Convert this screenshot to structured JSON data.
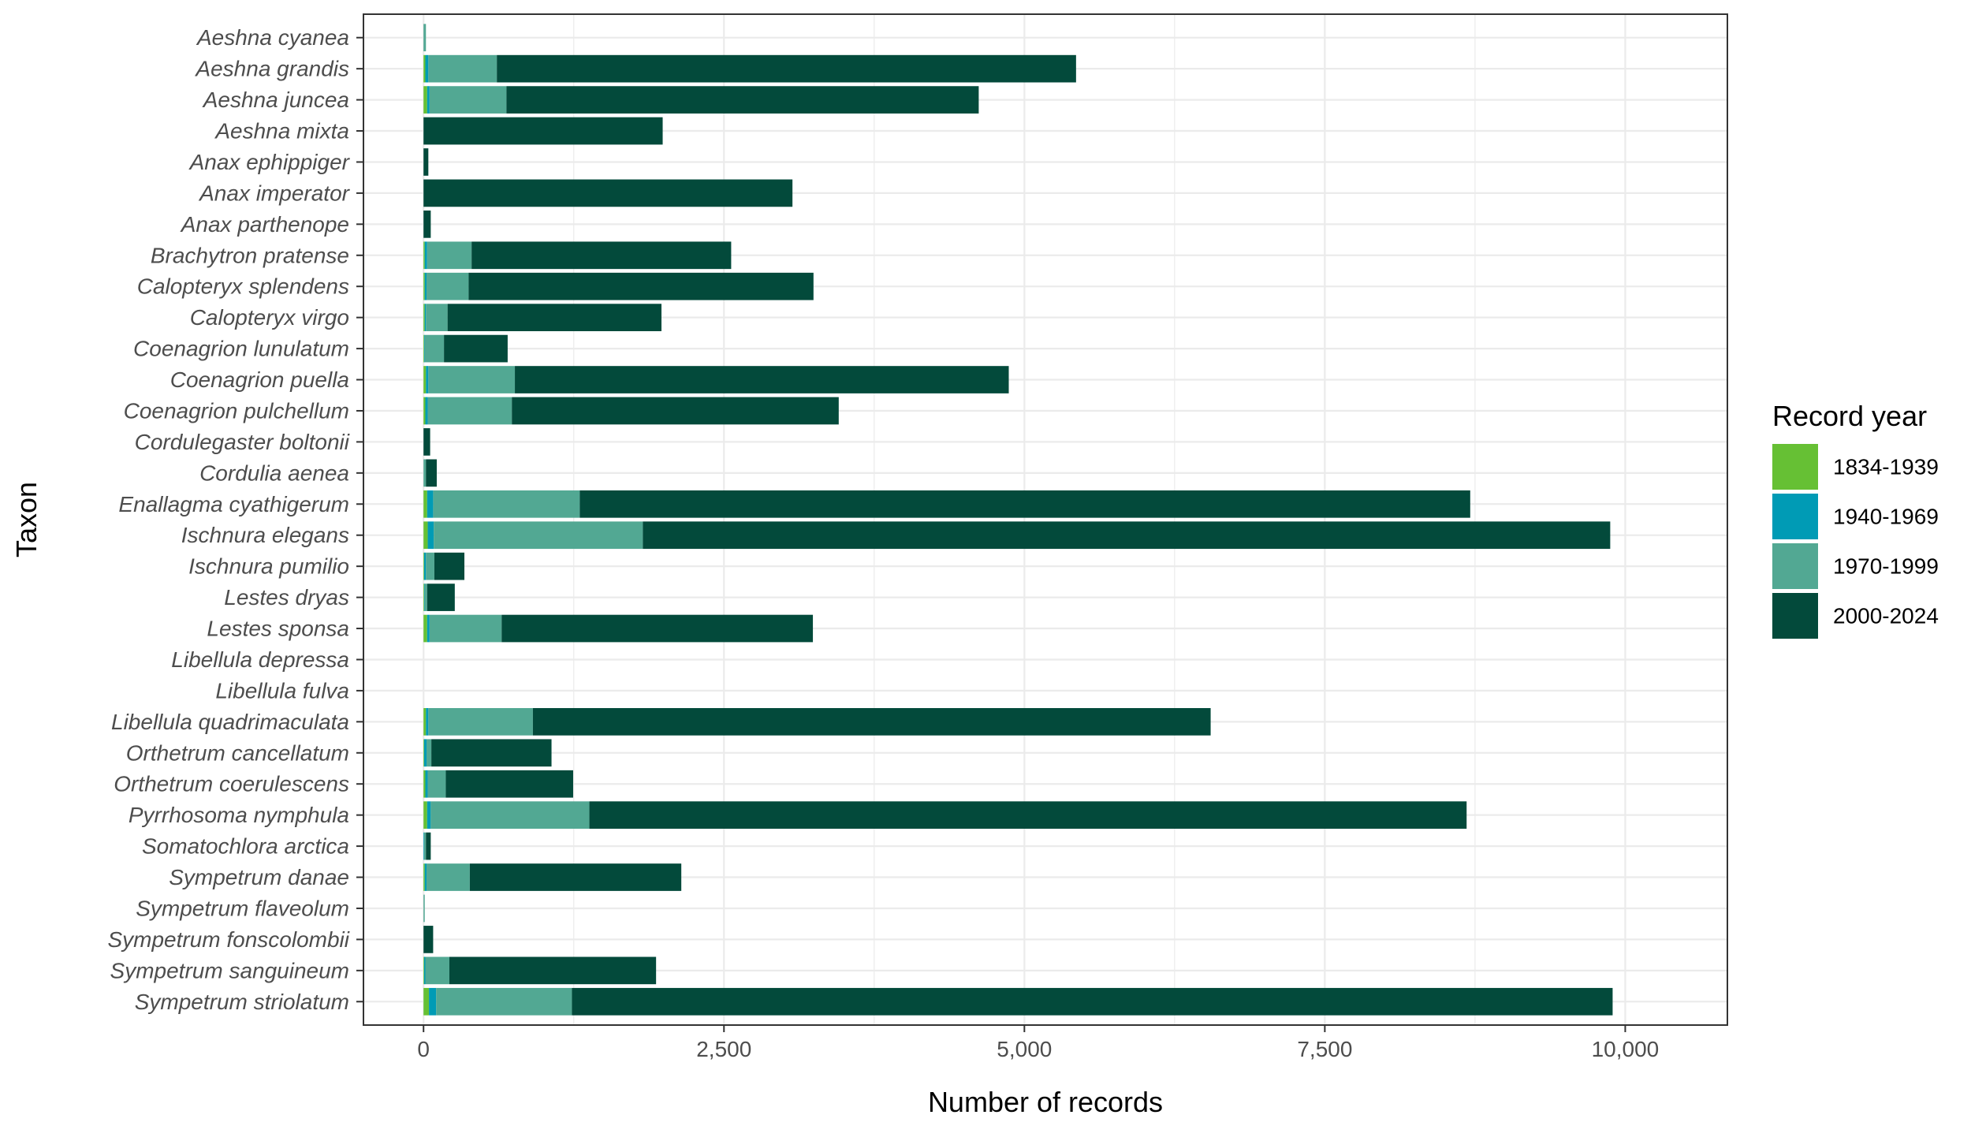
{
  "chart_data": {
    "type": "bar",
    "orientation": "horizontal",
    "stacked": true,
    "xlabel": "Number of records",
    "ylabel": "Taxon",
    "xlim": [
      -500,
      10850
    ],
    "xticks": [
      0,
      2500,
      5000,
      7500,
      10000
    ],
    "xtick_labels": [
      "0",
      "2,500",
      "5,000",
      "7,500",
      "10,000"
    ],
    "grid": true,
    "legend": {
      "title": "Record year",
      "position": "right"
    },
    "categories": [
      "Aeshna cyanea",
      "Aeshna grandis",
      "Aeshna juncea",
      "Aeshna mixta",
      "Anax ephippiger",
      "Anax imperator",
      "Anax parthenope",
      "Brachytron pratense",
      "Calopteryx splendens",
      "Calopteryx virgo",
      "Coenagrion lunulatum",
      "Coenagrion puella",
      "Coenagrion pulchellum",
      "Cordulegaster boltonii",
      "Cordulia aenea",
      "Enallagma cyathigerum",
      "Ischnura elegans",
      "Ischnura pumilio",
      "Lestes dryas",
      "Lestes sponsa",
      "Libellula depressa",
      "Libellula fulva",
      "Libellula quadrimaculata",
      "Orthetrum cancellatum",
      "Orthetrum coerulescens",
      "Pyrrhosoma nymphula",
      "Somatochlora arctica",
      "Sympetrum danae",
      "Sympetrum flaveolum",
      "Sympetrum fonscolombii",
      "Sympetrum sanguineum",
      "Sympetrum striolatum"
    ],
    "series": [
      {
        "name": "1834-1939",
        "color": "#66c034",
        "values": [
          0,
          15,
          30,
          0,
          0,
          0,
          0,
          10,
          10,
          10,
          5,
          20,
          15,
          0,
          0,
          30,
          35,
          5,
          5,
          30,
          0,
          0,
          20,
          5,
          15,
          30,
          0,
          10,
          0,
          0,
          5,
          45
        ]
      },
      {
        "name": "1940-1969",
        "color": "#009bb5",
        "values": [
          0,
          25,
          20,
          0,
          0,
          0,
          0,
          20,
          15,
          10,
          5,
          20,
          20,
          0,
          0,
          50,
          50,
          15,
          5,
          20,
          0,
          0,
          20,
          20,
          20,
          30,
          5,
          15,
          0,
          0,
          10,
          60
        ]
      },
      {
        "name": "1970-1999",
        "color": "#52a893",
        "values": [
          20,
          570,
          640,
          0,
          0,
          0,
          0,
          370,
          350,
          180,
          160,
          720,
          700,
          0,
          20,
          1220,
          1740,
          70,
          20,
          600,
          0,
          0,
          870,
          40,
          150,
          1320,
          15,
          360,
          10,
          0,
          200,
          1130
        ]
      },
      {
        "name": "2000-2024",
        "color": "#034a3b",
        "values": [
          0,
          4820,
          3930,
          1990,
          40,
          3070,
          60,
          2160,
          2870,
          1780,
          530,
          4110,
          2720,
          55,
          90,
          7410,
          8050,
          250,
          230,
          2590,
          0,
          0,
          5640,
          1000,
          1060,
          7300,
          40,
          1760,
          0,
          80,
          1720,
          8660
        ]
      }
    ]
  }
}
